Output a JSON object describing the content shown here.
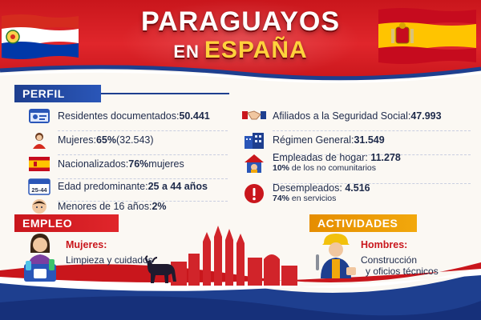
{
  "title": {
    "line1": "PARAGUAYOS",
    "line2_en": "EN",
    "line2_country": "ESPAÑA"
  },
  "sections": {
    "perfil": "PERFIL",
    "empleo": "EMPLEO",
    "actividades": "ACTIVIDADES"
  },
  "perfil_left": [
    {
      "icon": "id-card-icon",
      "label": "Residentes documentados: ",
      "value": "50.441"
    },
    {
      "icon": "woman-icon",
      "label": "Mujeres: ",
      "value": "65%",
      "extra": " (32.543)"
    },
    {
      "icon": "spain-flag-icon",
      "label": "Nacionalizados: ",
      "value": "76%",
      "extra": " mujeres"
    },
    {
      "icon": "calendar-icon",
      "label": "Edad predominante: ",
      "value": "25 a 44 años",
      "icon_text": "25-44"
    },
    {
      "icon": "child-icon",
      "label": "Menores de 16 años: ",
      "value": "2%"
    }
  ],
  "perfil_right": [
    {
      "icon": "handshake-icon",
      "label": "Afiliados a la Seguridad Social: ",
      "value": "47.993"
    },
    {
      "icon": "building-icon",
      "label": "Régimen General: ",
      "value": "31.549"
    },
    {
      "icon": "house-icon",
      "label": "Empleadas de hogar: ",
      "value": "11.278",
      "sub_value": "10%",
      "sub_text": " de los no comunitarios"
    },
    {
      "icon": "alert-icon",
      "label": "Desempleados: ",
      "value": "4.516",
      "sub_value": "74%",
      "sub_text": " en servicios"
    }
  ],
  "empleo": {
    "heading": "Mujeres:",
    "text": "Limpieza y cuidados"
  },
  "actividades": {
    "heading": "Hombres:",
    "line1": "Construcción",
    "line2": "y oficios técnicos"
  },
  "colors": {
    "red": "#c9161c",
    "blue": "#1e3f8f",
    "gold": "#f2a80c",
    "text": "#1e2a4a"
  }
}
